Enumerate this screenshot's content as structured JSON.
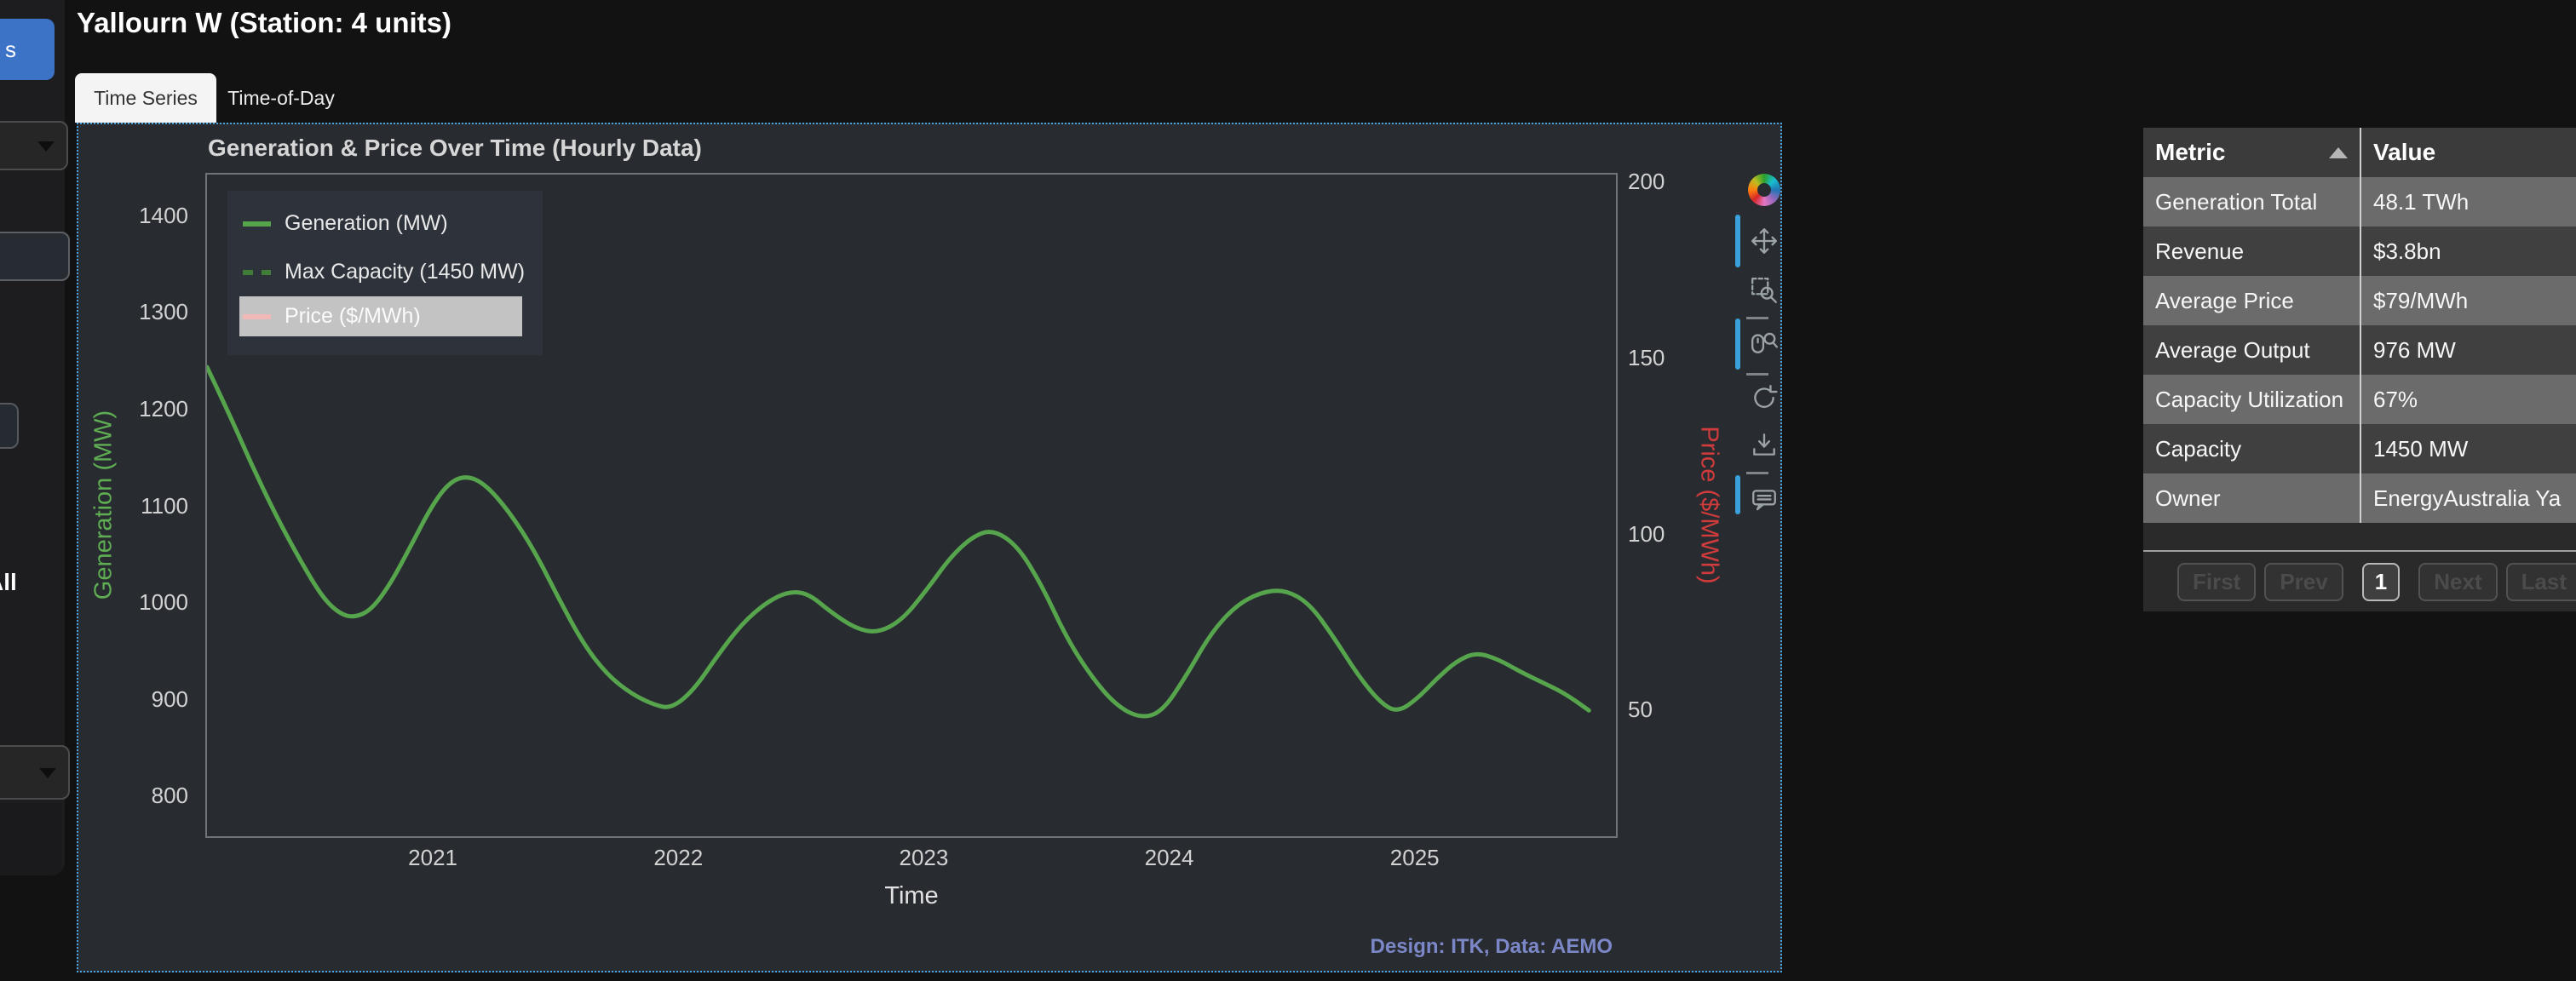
{
  "page": {
    "title": "Yallourn W (Station: 4 units)"
  },
  "tabs": [
    {
      "label": "Time Series",
      "active": true
    },
    {
      "label": "Time-of-Day",
      "active": false
    }
  ],
  "sidebar": {
    "button_label": "s",
    "all_label": "All",
    "note_widgets": "partially visible cut-off controls: 2 dropdowns, 3 boxes"
  },
  "chart_data": {
    "type": "line",
    "title": "Generation & Price Over Time (Hourly Data)",
    "xlabel": "Time",
    "ylabel": "Generation (MW)",
    "y2label": "Price ($/MWh)",
    "attribution": "Design: ITK, Data: AEMO",
    "x_range": [
      2020.08,
      2025.82
    ],
    "y_range": [
      758,
      1442
    ],
    "y2_range": [
      14,
      202
    ],
    "x_ticks": [
      2021,
      2022,
      2023,
      2024,
      2025
    ],
    "y_ticks": [
      800,
      900,
      1000,
      1100,
      1200,
      1300,
      1400
    ],
    "y2_ticks": [
      50,
      100,
      150,
      200
    ],
    "grid": false,
    "background": "#282c31",
    "legend": [
      {
        "label": "Generation (MW)",
        "color": "#56a44c",
        "style": "solid",
        "muted": false
      },
      {
        "label": "Max Capacity (1450 MW)",
        "color": "#3f7d39",
        "style": "dashed",
        "muted": false
      },
      {
        "label": "Price ($/MWh)",
        "color": "#f1b8b8",
        "style": "solid",
        "muted": true
      }
    ],
    "series": [
      {
        "name": "Generation (MW)",
        "axis": "y",
        "color": "#56a44c",
        "line_width": 5,
        "points": [
          [
            2020.08,
            1243
          ],
          [
            2020.17,
            1195
          ],
          [
            2020.26,
            1143
          ],
          [
            2020.36,
            1090
          ],
          [
            2020.46,
            1043
          ],
          [
            2020.55,
            1005
          ],
          [
            2020.62,
            988
          ],
          [
            2020.68,
            984
          ],
          [
            2020.75,
            992
          ],
          [
            2020.83,
            1020
          ],
          [
            2020.91,
            1058
          ],
          [
            2020.99,
            1097
          ],
          [
            2021.06,
            1122
          ],
          [
            2021.13,
            1131
          ],
          [
            2021.21,
            1123
          ],
          [
            2021.31,
            1094
          ],
          [
            2021.41,
            1055
          ],
          [
            2021.51,
            1005
          ],
          [
            2021.61,
            958
          ],
          [
            2021.71,
            925
          ],
          [
            2021.81,
            905
          ],
          [
            2021.9,
            894
          ],
          [
            2021.97,
            890
          ],
          [
            2022.06,
            908
          ],
          [
            2022.16,
            945
          ],
          [
            2022.26,
            978
          ],
          [
            2022.36,
            1000
          ],
          [
            2022.45,
            1011
          ],
          [
            2022.53,
            1009
          ],
          [
            2022.62,
            990
          ],
          [
            2022.72,
            973
          ],
          [
            2022.81,
            968
          ],
          [
            2022.91,
            981
          ],
          [
            2023.01,
            1012
          ],
          [
            2023.11,
            1047
          ],
          [
            2023.2,
            1068
          ],
          [
            2023.28,
            1075
          ],
          [
            2023.38,
            1059
          ],
          [
            2023.48,
            1018
          ],
          [
            2023.58,
            964
          ],
          [
            2023.68,
            924
          ],
          [
            2023.78,
            894
          ],
          [
            2023.88,
            880
          ],
          [
            2023.97,
            886
          ],
          [
            2024.07,
            924
          ],
          [
            2024.17,
            968
          ],
          [
            2024.27,
            996
          ],
          [
            2024.37,
            1010
          ],
          [
            2024.47,
            1013
          ],
          [
            2024.57,
            999
          ],
          [
            2024.67,
            964
          ],
          [
            2024.77,
            924
          ],
          [
            2024.86,
            896
          ],
          [
            2024.93,
            886
          ],
          [
            2025.01,
            900
          ],
          [
            2025.09,
            921
          ],
          [
            2025.17,
            939
          ],
          [
            2025.25,
            948
          ],
          [
            2025.34,
            941
          ],
          [
            2025.43,
            928
          ],
          [
            2025.52,
            917
          ],
          [
            2025.61,
            906
          ],
          [
            2025.71,
            888
          ]
        ]
      },
      {
        "name": "Max Capacity (1450 MW)",
        "axis": "y",
        "color": "#3f7d39",
        "style": "dashed",
        "value": 1450,
        "visible": false
      },
      {
        "name": "Price ($/MWh)",
        "axis": "y2",
        "color": "#f1b8b8",
        "muted": true,
        "visible": false
      }
    ]
  },
  "toolbar": {
    "tools": [
      {
        "name": "bokeh-logo",
        "active": false
      },
      {
        "name": "pan",
        "active": true
      },
      {
        "name": "box-zoom",
        "active": false
      },
      {
        "name": "wheel-zoom",
        "active": true
      },
      {
        "name": "reset",
        "active": false
      },
      {
        "name": "save",
        "active": false
      },
      {
        "name": "hover",
        "active": true
      }
    ]
  },
  "table": {
    "columns": [
      "Metric",
      "Value"
    ],
    "sort": {
      "column": "Metric",
      "direction": "asc"
    },
    "rows": [
      [
        "Generation Total",
        "48.1 TWh"
      ],
      [
        "Revenue",
        "$3.8bn"
      ],
      [
        "Average Price",
        "$79/MWh"
      ],
      [
        "Average Output",
        "976 MW"
      ],
      [
        "Capacity Utilization",
        "67%"
      ],
      [
        "Capacity",
        "1450 MW"
      ],
      [
        "Owner",
        "EnergyAustralia Ya"
      ]
    ],
    "pagination": {
      "first": "First",
      "prev": "Prev",
      "page": "1",
      "next": "Next",
      "last": "Last"
    }
  }
}
